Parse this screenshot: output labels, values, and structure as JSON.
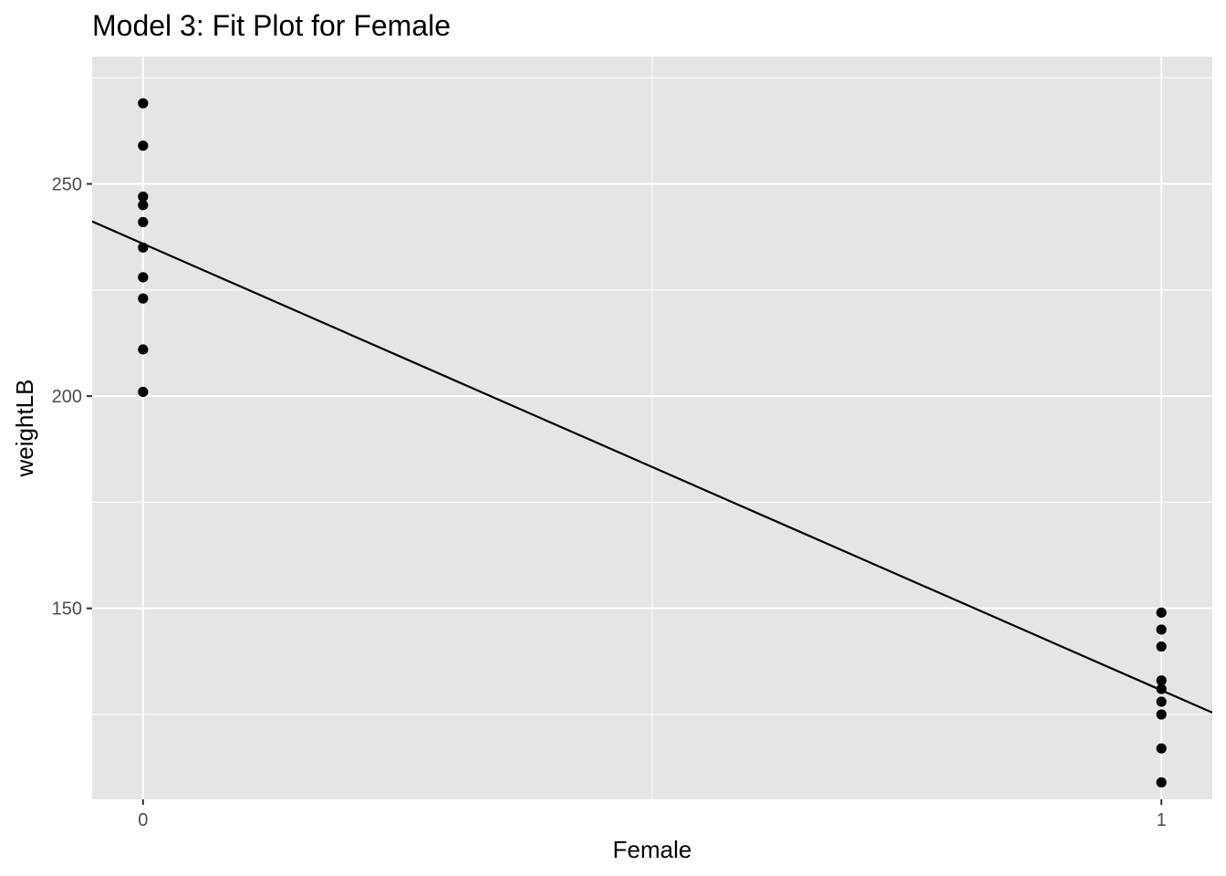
{
  "chart_data": {
    "type": "scatter",
    "title": "Model 3: Fit Plot for Female",
    "xlabel": "Female",
    "ylabel": "weightLB",
    "xlim": [
      -0.05,
      1.05
    ],
    "ylim": [
      105,
      280
    ],
    "x_ticks": [
      0,
      1
    ],
    "y_ticks": [
      150,
      200,
      250
    ],
    "x_minor_ticks": [
      0.5
    ],
    "y_minor_ticks": [
      125,
      175,
      225,
      275
    ],
    "grid": true,
    "background": "#e5e5e5",
    "grid_color": "#ffffff",
    "point_color": "#000000",
    "line_color": "#000000",
    "points": [
      {
        "x": 0,
        "y": 269
      },
      {
        "x": 0,
        "y": 259
      },
      {
        "x": 0,
        "y": 247
      },
      {
        "x": 0,
        "y": 245
      },
      {
        "x": 0,
        "y": 241
      },
      {
        "x": 0,
        "y": 235
      },
      {
        "x": 0,
        "y": 228
      },
      {
        "x": 0,
        "y": 223
      },
      {
        "x": 0,
        "y": 211
      },
      {
        "x": 0,
        "y": 201
      },
      {
        "x": 1,
        "y": 149
      },
      {
        "x": 1,
        "y": 145
      },
      {
        "x": 1,
        "y": 141
      },
      {
        "x": 1,
        "y": 133
      },
      {
        "x": 1,
        "y": 131
      },
      {
        "x": 1,
        "y": 128
      },
      {
        "x": 1,
        "y": 125
      },
      {
        "x": 1,
        "y": 117
      },
      {
        "x": 1,
        "y": 109
      }
    ],
    "fit_line": {
      "intercept": 235.9,
      "slope": -105.2
    }
  }
}
